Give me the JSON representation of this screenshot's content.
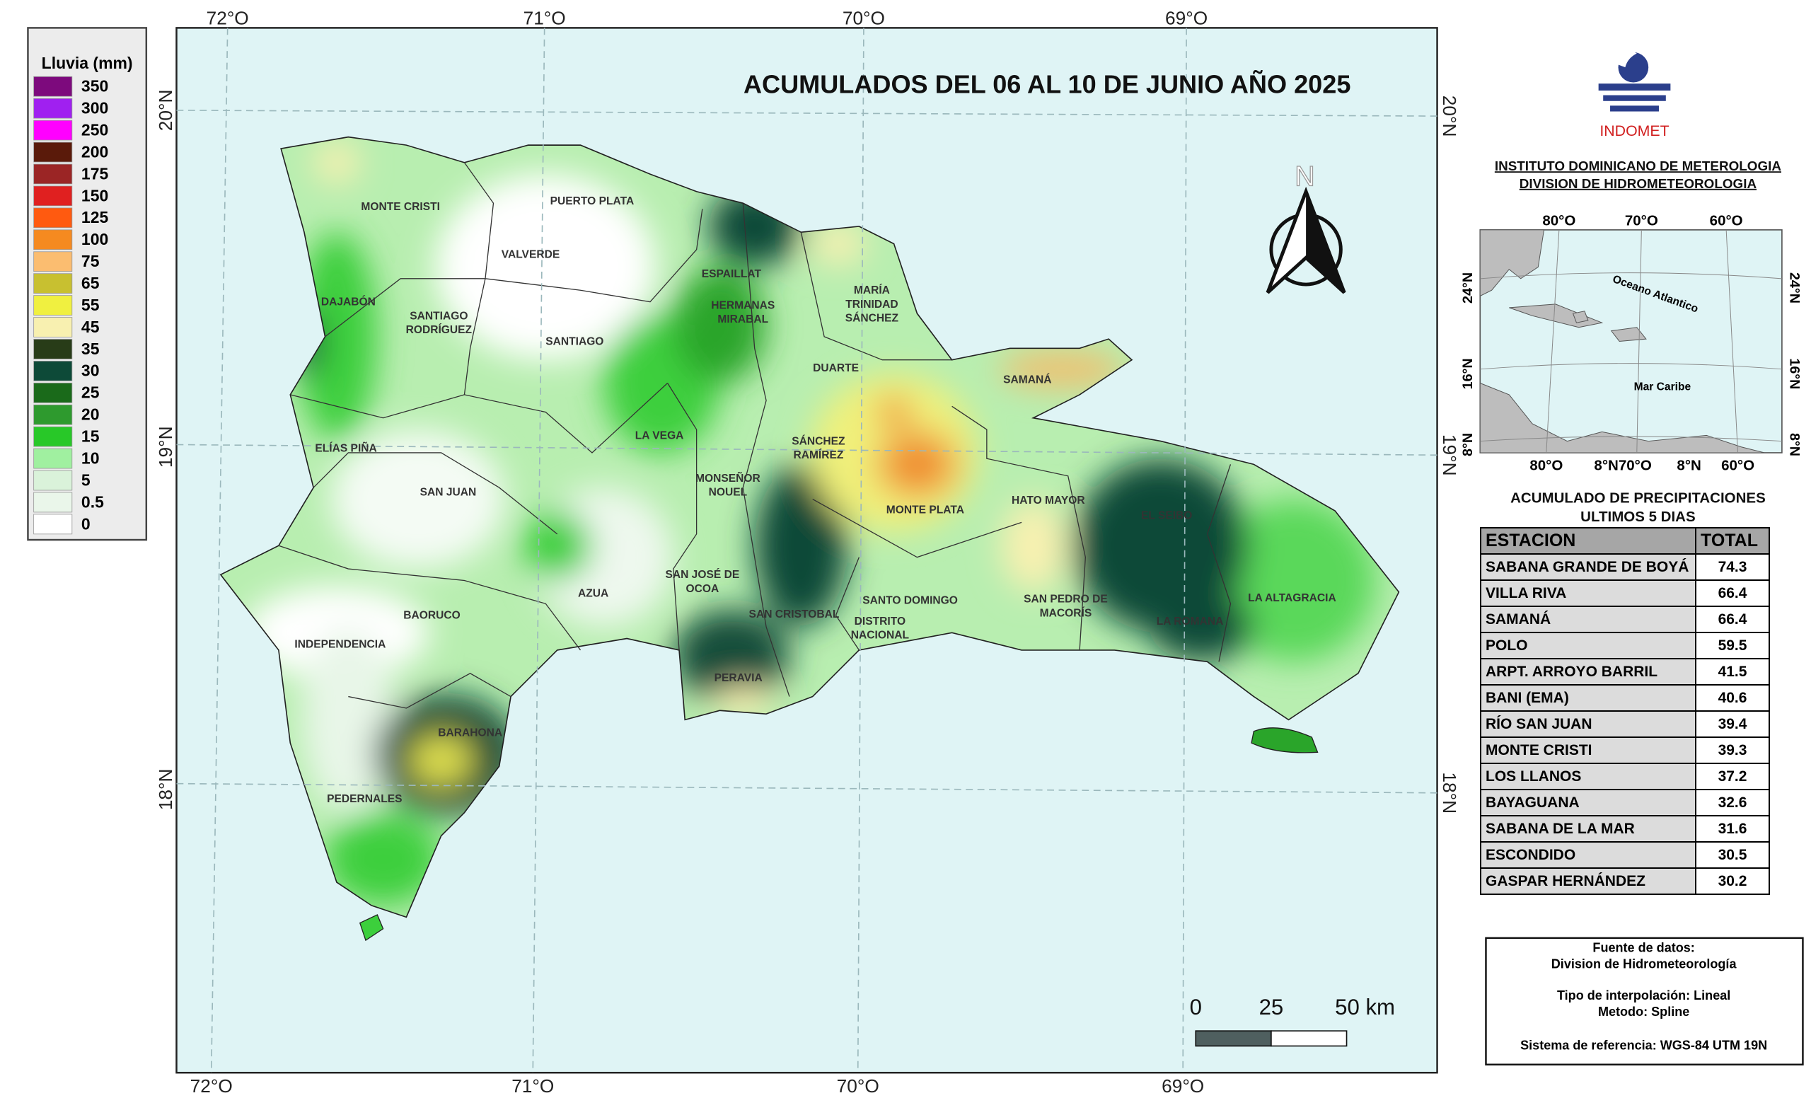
{
  "title": "ACUMULADOS DEL 06 AL 10  DE JUNIO AÑO 2025",
  "legend": {
    "title": "Lluvia (mm)",
    "items": [
      {
        "label": 350,
        "color": "#7d0a7d"
      },
      {
        "label": 300,
        "color": "#a020f0"
      },
      {
        "label": 250,
        "color": "#ff00ff"
      },
      {
        "label": 200,
        "color": "#5a1a0a"
      },
      {
        "label": 175,
        "color": "#9b2525"
      },
      {
        "label": 150,
        "color": "#e02020"
      },
      {
        "label": 125,
        "color": "#ff5a10"
      },
      {
        "label": 100,
        "color": "#f58a20"
      },
      {
        "label": 75,
        "color": "#fbbd70"
      },
      {
        "label": 65,
        "color": "#c8c030"
      },
      {
        "label": 55,
        "color": "#f0f040"
      },
      {
        "label": 45,
        "color": "#f8f0b0"
      },
      {
        "label": 35,
        "color": "#283c18"
      },
      {
        "label": 30,
        "color": "#0d4a38"
      },
      {
        "label": 25,
        "color": "#1a6a1a"
      },
      {
        "label": 20,
        "color": "#2e9a2e"
      },
      {
        "label": 15,
        "color": "#28c828"
      },
      {
        "label": 10,
        "color": "#a0f0a0"
      },
      {
        "label": 5,
        "color": "#daf2da"
      },
      {
        "label": 0.5,
        "color": "#eaf6ea"
      },
      {
        "label": 0,
        "color": "#ffffff"
      }
    ]
  },
  "graticule": {
    "longitudes": [
      "72°O",
      "71°O",
      "70°O",
      "69°O"
    ],
    "latitudes": [
      "20°N",
      "19°N",
      "18°N"
    ]
  },
  "provinces": [
    {
      "label": [
        "MONTE CRISTI"
      ]
    },
    {
      "label": [
        "PUERTO PLATA"
      ]
    },
    {
      "label": [
        "VALVERDE"
      ]
    },
    {
      "label": [
        "ESPAILLAT"
      ]
    },
    {
      "label": [
        "MARÍA",
        "TRINIDAD",
        "SÁNCHEZ"
      ]
    },
    {
      "label": [
        "HERMANAS",
        "MIRABAL"
      ]
    },
    {
      "label": [
        "DAJABÓN"
      ]
    },
    {
      "label": [
        "SANTIAGO",
        "RODRÍGUEZ"
      ]
    },
    {
      "label": [
        "SANTIAGO"
      ]
    },
    {
      "label": [
        "SAMANÁ"
      ]
    },
    {
      "label": [
        "DUARTE"
      ]
    },
    {
      "label": [
        "LA VEGA"
      ]
    },
    {
      "label": [
        "SÁNCHEZ",
        "RAMÍREZ"
      ]
    },
    {
      "label": [
        "ELÍAS PIÑA"
      ]
    },
    {
      "label": [
        "SAN JUAN"
      ]
    },
    {
      "label": [
        "MONSEÑOR",
        "NOUEL"
      ]
    },
    {
      "label": [
        "MONTE PLATA"
      ]
    },
    {
      "label": [
        "HATO MAYOR"
      ]
    },
    {
      "label": [
        "EL SEIBO"
      ]
    },
    {
      "label": [
        "AZUA"
      ]
    },
    {
      "label": [
        "SAN JOSÉ DE",
        "OCOA"
      ]
    },
    {
      "label": [
        "BAORUCO"
      ]
    },
    {
      "label": [
        "SAN CRISTOBAL"
      ]
    },
    {
      "label": [
        "SANTO DOMINGO"
      ]
    },
    {
      "label": [
        "DISTRITO",
        "NACIONAL"
      ]
    },
    {
      "label": [
        "SAN PEDRO DE",
        "MACORÍS"
      ]
    },
    {
      "label": [
        "LA ROMANA"
      ]
    },
    {
      "label": [
        "LA ALTAGRACIA"
      ]
    },
    {
      "label": [
        "INDEPENDENCIA"
      ]
    },
    {
      "label": [
        "PERAVIA"
      ]
    },
    {
      "label": [
        "BARAHONA"
      ]
    },
    {
      "label": [
        "PEDERNALES"
      ]
    }
  ],
  "north": "N",
  "scale_bar": {
    "ticks": [
      0,
      25,
      {
        "value": 50,
        "label": "50 km"
      }
    ]
  },
  "header": {
    "agency": "INDOMET",
    "institute": "INSTITUTO DOMINICANO DE METEROLOGIA",
    "division": "DIVISION DE HIDROMETEOROLOGIA"
  },
  "inset": {
    "top_labels": [
      "80°O",
      "70°O",
      "60°O"
    ],
    "bottom_labels": [
      "80°O",
      "8°N70°O",
      "8°N",
      "60°O"
    ],
    "left_labels": [
      "24°N",
      "16°N",
      "8°N"
    ],
    "right_labels": [
      "24°N",
      "16°N",
      "8°N"
    ],
    "ocean": "Oceano Atlantico",
    "sea": "Mar Caribe"
  },
  "table": {
    "title": [
      "ACUMULADO DE PRECIPITACIONES",
      "ULTIMOS 5 DIAS"
    ],
    "columns": [
      "ESTACION",
      "TOTAL"
    ],
    "rows": [
      [
        "SABANA GRANDE DE BOYÁ",
        74.3
      ],
      [
        "VILLA RIVA",
        66.4
      ],
      [
        "SAMANÁ",
        66.4
      ],
      [
        "POLO",
        59.5
      ],
      [
        "ARPT. ARROYO BARRIL",
        41.5
      ],
      [
        "BANI (EMA)",
        40.6
      ],
      [
        "RÍO SAN JUAN",
        39.4
      ],
      [
        "MONTE CRISTI",
        39.3
      ],
      [
        "LOS LLANOS",
        37.2
      ],
      [
        "BAYAGUANA",
        32.6
      ],
      [
        "SABANA DE LA MAR",
        31.6
      ],
      [
        "ESCONDIDO",
        30.5
      ],
      [
        "GASPAR HERNÁNDEZ",
        30.2
      ]
    ]
  },
  "notes": [
    "Fuente de datos:",
    "Division de Hidrometeorología",
    "Tipo de interpolación: Lineal",
    "Metodo: Spline",
    "Sistema de referencia: WGS-84 UTM 19N"
  ]
}
